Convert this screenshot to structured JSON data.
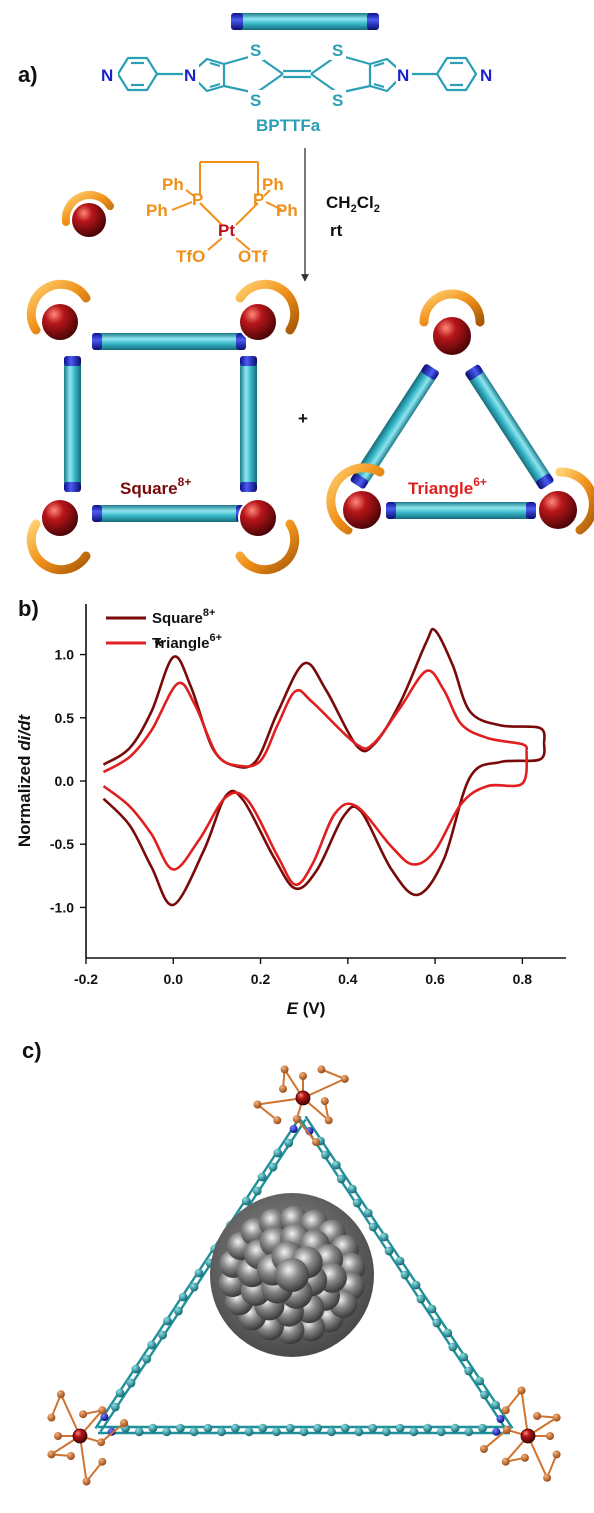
{
  "panel_a": {
    "label": "a)",
    "ligand_name": "BPTTFa",
    "atoms": {
      "N": "N",
      "S": "S"
    },
    "pt_complex": {
      "ph": "Ph",
      "p": "P",
      "pt": "Pt",
      "otf_left": "TfO",
      "otf_right": "OTf"
    },
    "conditions": {
      "solvent_main": "CH",
      "solvent_sub1": "2",
      "solvent_cl": "Cl",
      "solvent_sub2": "2",
      "temperature": "rt"
    },
    "plus": "+",
    "square_label": {
      "base": "Square",
      "charge": "8+"
    },
    "triangle_label": {
      "base": "Triangle",
      "charge": "6+"
    }
  },
  "panel_b": {
    "label": "b)"
  },
  "panel_c": {
    "label": "c)"
  },
  "colors": {
    "ligand": "#2a9fb5",
    "nitrogen": "#1a22c8",
    "pt_orange": "#f0901a",
    "pt_red": "#c0101a",
    "square": "#7a0a0a",
    "triangle": "#e02020",
    "carbon_c": "#1f8f9a",
    "carbon_p": "#d0732e"
  },
  "chart_data": {
    "type": "line",
    "title": "",
    "xlabel_italic": "E",
    "xlabel_unit": " (V)",
    "ylabel_prefix": "Normalized ",
    "ylabel_italic": "di/dt",
    "xlim": [
      -0.2,
      0.9
    ],
    "ylim": [
      -1.4,
      1.4
    ],
    "xticks": [
      -0.2,
      0.0,
      0.2,
      0.4,
      0.6,
      0.8
    ],
    "xtick_labels": [
      "-0.2",
      "0.0",
      "0.2",
      "0.4",
      "0.6",
      "0.8"
    ],
    "yticks": [
      -1.0,
      -0.5,
      0.0,
      0.5,
      1.0
    ],
    "ytick_labels": [
      "-1.0",
      "-0.5",
      "0.0",
      "0.5",
      "1.0"
    ],
    "grid": false,
    "legend_position": "top-left",
    "annotation": "*",
    "series": [
      {
        "name": "Square",
        "charge": "8+",
        "color": "#7a0a0a",
        "forward": [
          [
            -0.16,
            0.13
          ],
          [
            -0.1,
            0.26
          ],
          [
            -0.05,
            0.55
          ],
          [
            0.0,
            0.98
          ],
          [
            0.04,
            0.75
          ],
          [
            0.09,
            0.26
          ],
          [
            0.14,
            0.12
          ],
          [
            0.19,
            0.16
          ],
          [
            0.24,
            0.55
          ],
          [
            0.3,
            0.93
          ],
          [
            0.35,
            0.72
          ],
          [
            0.42,
            0.28
          ],
          [
            0.46,
            0.29
          ],
          [
            0.52,
            0.62
          ],
          [
            0.58,
            1.1
          ],
          [
            0.6,
            1.19
          ],
          [
            0.64,
            0.92
          ],
          [
            0.68,
            0.55
          ],
          [
            0.75,
            0.44
          ],
          [
            0.84,
            0.42
          ],
          [
            0.85,
            0.3
          ]
        ],
        "reverse": [
          [
            0.85,
            0.3
          ],
          [
            0.84,
            0.17
          ],
          [
            0.75,
            0.15
          ],
          [
            0.68,
            0.03
          ],
          [
            0.62,
            -0.62
          ],
          [
            0.56,
            -0.9
          ],
          [
            0.5,
            -0.7
          ],
          [
            0.43,
            -0.24
          ],
          [
            0.39,
            -0.28
          ],
          [
            0.33,
            -0.7
          ],
          [
            0.28,
            -0.85
          ],
          [
            0.23,
            -0.6
          ],
          [
            0.16,
            -0.15
          ],
          [
            0.12,
            -0.12
          ],
          [
            0.07,
            -0.55
          ],
          [
            0.0,
            -0.98
          ],
          [
            -0.05,
            -0.68
          ],
          [
            -0.1,
            -0.35
          ],
          [
            -0.16,
            -0.14
          ]
        ]
      },
      {
        "name": "Triangle",
        "charge": "6+",
        "color": "#e02020",
        "forward": [
          [
            -0.16,
            0.07
          ],
          [
            -0.1,
            0.19
          ],
          [
            -0.05,
            0.4
          ],
          [
            0.01,
            0.77
          ],
          [
            0.05,
            0.6
          ],
          [
            0.1,
            0.21
          ],
          [
            0.15,
            0.12
          ],
          [
            0.2,
            0.16
          ],
          [
            0.24,
            0.45
          ],
          [
            0.28,
            0.71
          ],
          [
            0.32,
            0.62
          ],
          [
            0.42,
            0.29
          ],
          [
            0.46,
            0.3
          ],
          [
            0.52,
            0.58
          ],
          [
            0.58,
            0.87
          ],
          [
            0.62,
            0.72
          ],
          [
            0.66,
            0.45
          ],
          [
            0.72,
            0.34
          ],
          [
            0.8,
            0.29
          ],
          [
            0.81,
            0.24
          ]
        ],
        "reverse": [
          [
            0.81,
            0.24
          ],
          [
            0.8,
            -0.02
          ],
          [
            0.72,
            -0.04
          ],
          [
            0.66,
            -0.18
          ],
          [
            0.6,
            -0.55
          ],
          [
            0.55,
            -0.66
          ],
          [
            0.5,
            -0.52
          ],
          [
            0.42,
            -0.2
          ],
          [
            0.37,
            -0.26
          ],
          [
            0.32,
            -0.65
          ],
          [
            0.28,
            -0.82
          ],
          [
            0.24,
            -0.6
          ],
          [
            0.17,
            -0.15
          ],
          [
            0.12,
            -0.13
          ],
          [
            0.06,
            -0.46
          ],
          [
            0.0,
            -0.7
          ],
          [
            -0.05,
            -0.42
          ],
          [
            -0.1,
            -0.2
          ],
          [
            -0.16,
            -0.04
          ]
        ]
      }
    ]
  }
}
